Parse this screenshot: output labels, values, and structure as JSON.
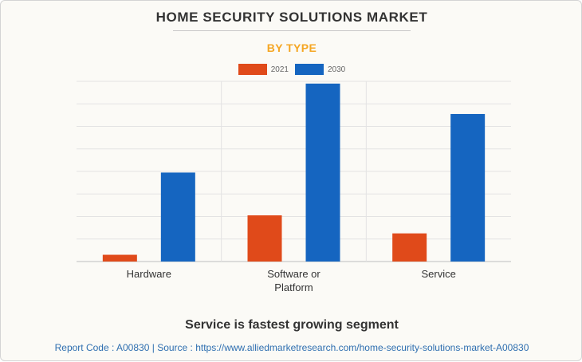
{
  "title": "HOME SECURITY SOLUTIONS MARKET",
  "subtitle": "BY TYPE",
  "insight": "Service is fastest growing segment",
  "footer": {
    "report_code": "Report Code : A00830",
    "separator": "|",
    "source": "Source : https://www.alliedmarketresearch.com/home-security-solutions-market-A00830"
  },
  "colors": {
    "2021": "#e04a1a",
    "2030": "#1565c0"
  },
  "chart_data": {
    "type": "bar",
    "categories": [
      "Hardware",
      "Software or Platform",
      "Service"
    ],
    "series": [
      {
        "name": "2021",
        "values": [
          0.3,
          2.05,
          1.25
        ]
      },
      {
        "name": "2030",
        "values": [
          3.95,
          7.9,
          6.55
        ]
      }
    ],
    "ylim": [
      0,
      8
    ],
    "grid": true,
    "legend": "top-center"
  }
}
